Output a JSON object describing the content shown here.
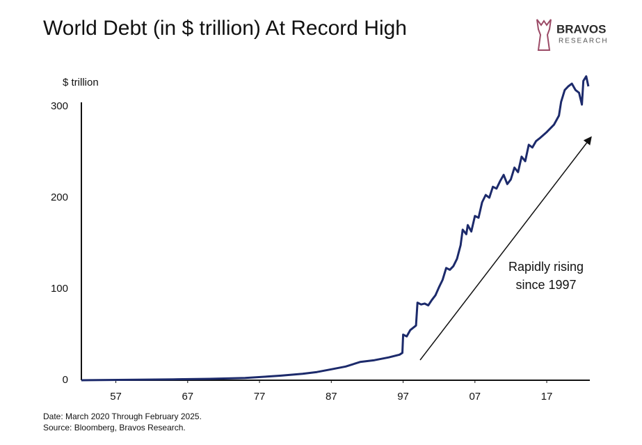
{
  "chart_data": {
    "type": "line",
    "title": "World Debt (in $ trillion) At Record High",
    "y_label": "$ trillion",
    "brand": {
      "name": "BRAVOS",
      "sub": "RESEARCH"
    },
    "annotation": [
      "Rapidly rising",
      "since 1997"
    ],
    "footnotes": [
      "Date: March 2020 Through February 2025.",
      "Source: Bloomberg, Bravos Research."
    ],
    "xlim": [
      1952.2,
      2023
    ],
    "ylim": [
      0,
      335
    ],
    "xticks": [
      {
        "value": 1957,
        "label": "57"
      },
      {
        "value": 1967,
        "label": "67"
      },
      {
        "value": 1977,
        "label": "77"
      },
      {
        "value": 1987,
        "label": "87"
      },
      {
        "value": 1997,
        "label": "97"
      },
      {
        "value": 2007,
        "label": "07"
      },
      {
        "value": 2017,
        "label": "17"
      }
    ],
    "yticks": [
      0,
      100,
      200,
      300
    ],
    "grid": false,
    "series": [
      {
        "name": "World Debt",
        "color": "#1c2a6b",
        "x": [
          1952.2,
          1960,
          1965,
          1970,
          1975,
          1978,
          1980,
          1983,
          1985,
          1987,
          1989,
          1991,
          1993,
          1995,
          1996.5,
          1996.9,
          1997,
          1997.5,
          1998,
          1998.8,
          1999,
          1999.5,
          2000,
          2000.5,
          2001,
          2001.5,
          2002,
          2002.5,
          2003,
          2003.5,
          2004,
          2004.5,
          2005,
          2005.3,
          2005.8,
          2006,
          2006.5,
          2007,
          2007.5,
          2008,
          2008.5,
          2009,
          2009.5,
          2010,
          2010.5,
          2011,
          2011.5,
          2012,
          2012.5,
          2013,
          2013.5,
          2014,
          2014.5,
          2015,
          2015.5,
          2016,
          2017,
          2018,
          2018.7,
          2019,
          2019.5,
          2020,
          2020.5,
          2021,
          2021.5,
          2021.9,
          2022.1,
          2022.5,
          2022.8
        ],
        "values": [
          0,
          0.5,
          1,
          1.5,
          2.5,
          4,
          5,
          7,
          9,
          12,
          15,
          20,
          22,
          25,
          28,
          30,
          50,
          48,
          55,
          60,
          85,
          83,
          84,
          82,
          88,
          93,
          102,
          110,
          123,
          121,
          125,
          133,
          148,
          165,
          160,
          170,
          163,
          180,
          178,
          195,
          203,
          200,
          212,
          210,
          218,
          225,
          215,
          220,
          233,
          228,
          245,
          240,
          258,
          255,
          262,
          265,
          272,
          280,
          290,
          305,
          318,
          322,
          325,
          318,
          315,
          302,
          328,
          333,
          322
        ]
      }
    ]
  }
}
